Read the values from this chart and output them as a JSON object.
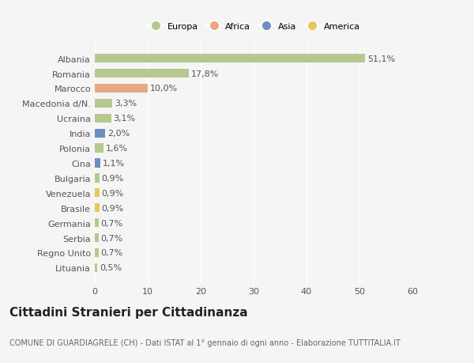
{
  "categories": [
    "Albania",
    "Romania",
    "Marocco",
    "Macedonia d/N.",
    "Ucraina",
    "India",
    "Polonia",
    "Cina",
    "Bulgaria",
    "Venezuela",
    "Brasile",
    "Germania",
    "Serbia",
    "Regno Unito",
    "Lituania"
  ],
  "values": [
    51.1,
    17.8,
    10.0,
    3.3,
    3.1,
    2.0,
    1.6,
    1.1,
    0.9,
    0.9,
    0.9,
    0.7,
    0.7,
    0.7,
    0.5
  ],
  "labels": [
    "51,1%",
    "17,8%",
    "10,0%",
    "3,3%",
    "3,1%",
    "2,0%",
    "1,6%",
    "1,1%",
    "0,9%",
    "0,9%",
    "0,9%",
    "0,7%",
    "0,7%",
    "0,7%",
    "0,5%"
  ],
  "colors": [
    "#b5c98e",
    "#b5c98e",
    "#e8a882",
    "#b5c98e",
    "#b5c98e",
    "#6b8fc2",
    "#b5c98e",
    "#6b8fc2",
    "#b5c98e",
    "#e8c85a",
    "#e8c85a",
    "#b5c98e",
    "#b5c98e",
    "#b5c98e",
    "#b5c98e"
  ],
  "legend": [
    {
      "label": "Europa",
      "color": "#b5c98e"
    },
    {
      "label": "Africa",
      "color": "#e8a882"
    },
    {
      "label": "Asia",
      "color": "#6b8fc2"
    },
    {
      "label": "America",
      "color": "#e8c85a"
    }
  ],
  "xlim": [
    0,
    60
  ],
  "xticks": [
    0,
    10,
    20,
    30,
    40,
    50,
    60
  ],
  "title": "Cittadini Stranieri per Cittadinanza",
  "subtitle": "COMUNE DI GUARDIAGRELE (CH) - Dati ISTAT al 1° gennaio di ogni anno - Elaborazione TUTTITALIA.IT",
  "background_color": "#f5f5f5",
  "grid_color": "#ffffff",
  "bar_height": 0.6,
  "title_fontsize": 11,
  "subtitle_fontsize": 7,
  "label_fontsize": 8,
  "tick_fontsize": 8
}
